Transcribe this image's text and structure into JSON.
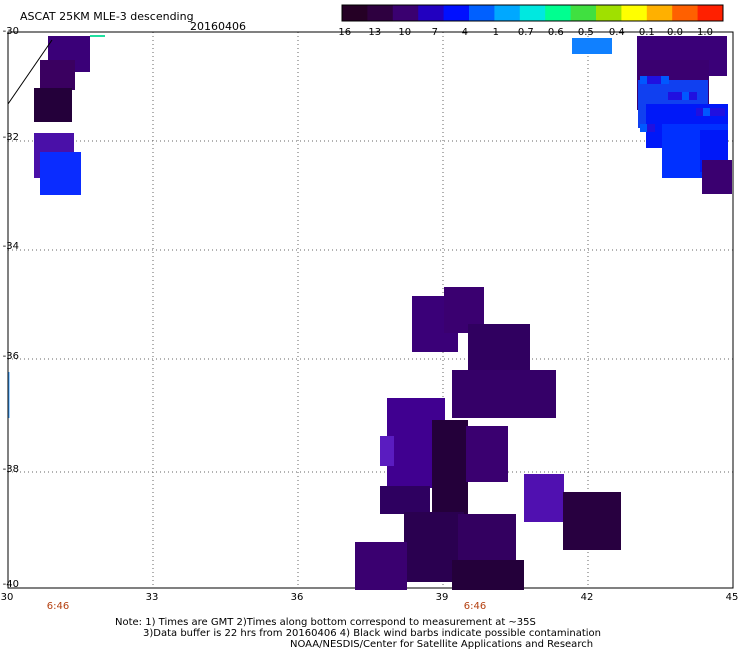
{
  "header": {
    "title": "ASCAT 25KM MLE-3 descending",
    "date": "20160406"
  },
  "colorbar": {
    "labels": [
      "-16",
      "-13",
      "-10",
      "-7",
      "-4",
      "-1",
      "-0.7",
      "-0.6",
      "-0.5",
      "-0.4",
      "-0.1",
      "0.0",
      "1.0"
    ],
    "colors": [
      "#250025",
      "#2e0040",
      "#3a0070",
      "#2200c0",
      "#0010ff",
      "#0060ff",
      "#00a8ff",
      "#00e8e0",
      "#00ff90",
      "#40e040",
      "#a0e000",
      "#ffff00",
      "#ffb000",
      "#ff6000",
      "#ff2000"
    ]
  },
  "axes": {
    "lat_labels": [
      "-30",
      "-32",
      "-34",
      "-36",
      "-38",
      "-40"
    ],
    "lon_labels": [
      "30",
      "33",
      "36",
      "39",
      "42",
      "45"
    ],
    "lat_range": [
      -30,
      -40
    ],
    "lon_range": [
      30,
      45
    ]
  },
  "times": [
    "6:46",
    "6:46"
  ],
  "notes": {
    "line1": "Note: 1) Times are GMT 2)Times along bottom correspond to measurement at ~35S",
    "line2": "3)Data buffer is 22 hrs from 20160406 4) Black wind barbs indicate possible contamination",
    "line3": "NOAA/NESDIS/Center for Satellite Applications and Research"
  }
}
